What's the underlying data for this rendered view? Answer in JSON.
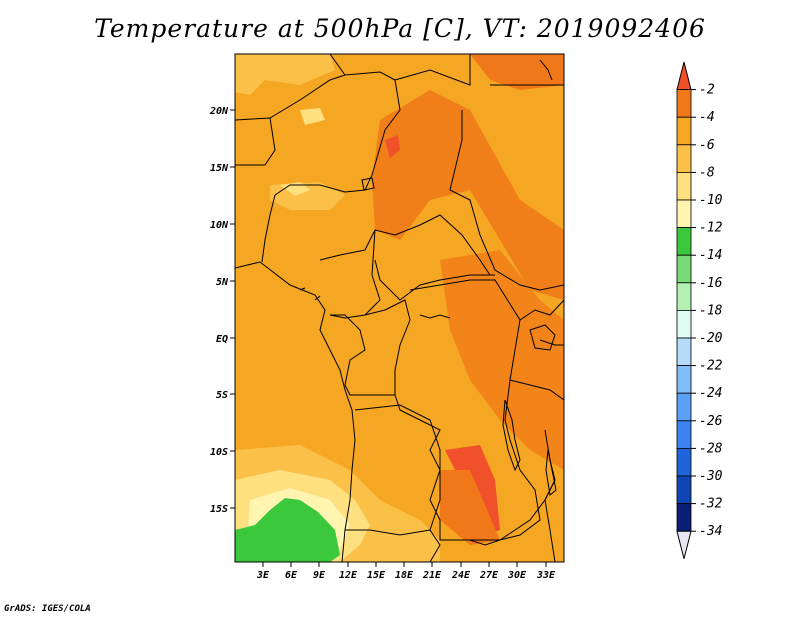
{
  "title": "Temperature at 500hPa [C], VT: 2019092406",
  "credit": "GrADS: IGES/COLA",
  "lat_ticks": [
    "20N",
    "15N",
    "10N",
    "5N",
    "EQ",
    "5S",
    "10S",
    "15S"
  ],
  "lon_ticks": [
    "3E",
    "6E",
    "9E",
    "12E",
    "15E",
    "18E",
    "21E",
    "24E",
    "27E",
    "30E",
    "33E"
  ],
  "colorbar": {
    "labels": [
      "-2",
      "-4",
      "-6",
      "-8",
      "-10",
      "-12",
      "-14",
      "-16",
      "-18",
      "-20",
      "-22",
      "-24",
      "-26",
      "-28",
      "-30",
      "-32",
      "-34"
    ],
    "colors": [
      "#f0502a",
      "#f07818",
      "#f5a623",
      "#fac048",
      "#ffe080",
      "#fff5b0",
      "#3cc83c",
      "#78dc78",
      "#b4f0b4",
      "#e0fcf4",
      "#b4dcf8",
      "#82befa",
      "#5aa0f5",
      "#3c82f0",
      "#2064dc",
      "#0f46b4",
      "#0a1e78",
      "#e6e6f5"
    ]
  },
  "colors": {
    "base_fill": "#f5a623",
    "warm_fill": "#f07818",
    "warmest_fill": "#f0502a",
    "cool_fill": "#fac048",
    "cooler_fill": "#ffe080",
    "coolest_fill": "#fff5b0",
    "green_fill": "#3cc83c"
  }
}
